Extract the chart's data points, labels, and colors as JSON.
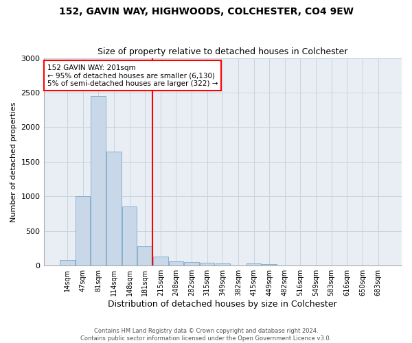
{
  "title1": "152, GAVIN WAY, HIGHWOODS, COLCHESTER, CO4 9EW",
  "title2": "Size of property relative to detached houses in Colchester",
  "xlabel": "Distribution of detached houses by size in Colchester",
  "ylabel": "Number of detached properties",
  "bin_labels": [
    "14sqm",
    "47sqm",
    "81sqm",
    "114sqm",
    "148sqm",
    "181sqm",
    "215sqm",
    "248sqm",
    "282sqm",
    "315sqm",
    "349sqm",
    "382sqm",
    "415sqm",
    "449sqm",
    "482sqm",
    "516sqm",
    "549sqm",
    "583sqm",
    "616sqm",
    "650sqm",
    "683sqm"
  ],
  "bar_heights": [
    80,
    1000,
    2450,
    1650,
    850,
    280,
    135,
    60,
    50,
    45,
    30,
    0,
    30,
    25,
    0,
    5,
    0,
    0,
    0,
    0,
    0
  ],
  "bar_color": "#c8d8e8",
  "bar_edge_color": "#7aa8c8",
  "vline_color": "red",
  "vline_position": 5.5,
  "annotation_text": "152 GAVIN WAY: 201sqm\n← 95% of detached houses are smaller (6,130)\n5% of semi-detached houses are larger (322) →",
  "ylim": [
    0,
    3000
  ],
  "yticks": [
    0,
    500,
    1000,
    1500,
    2000,
    2500,
    3000
  ],
  "grid_color": "#c8d4de",
  "bg_color": "#e8eef4",
  "footer1": "Contains HM Land Registry data © Crown copyright and database right 2024.",
  "footer2": "Contains public sector information licensed under the Open Government Licence v3.0."
}
